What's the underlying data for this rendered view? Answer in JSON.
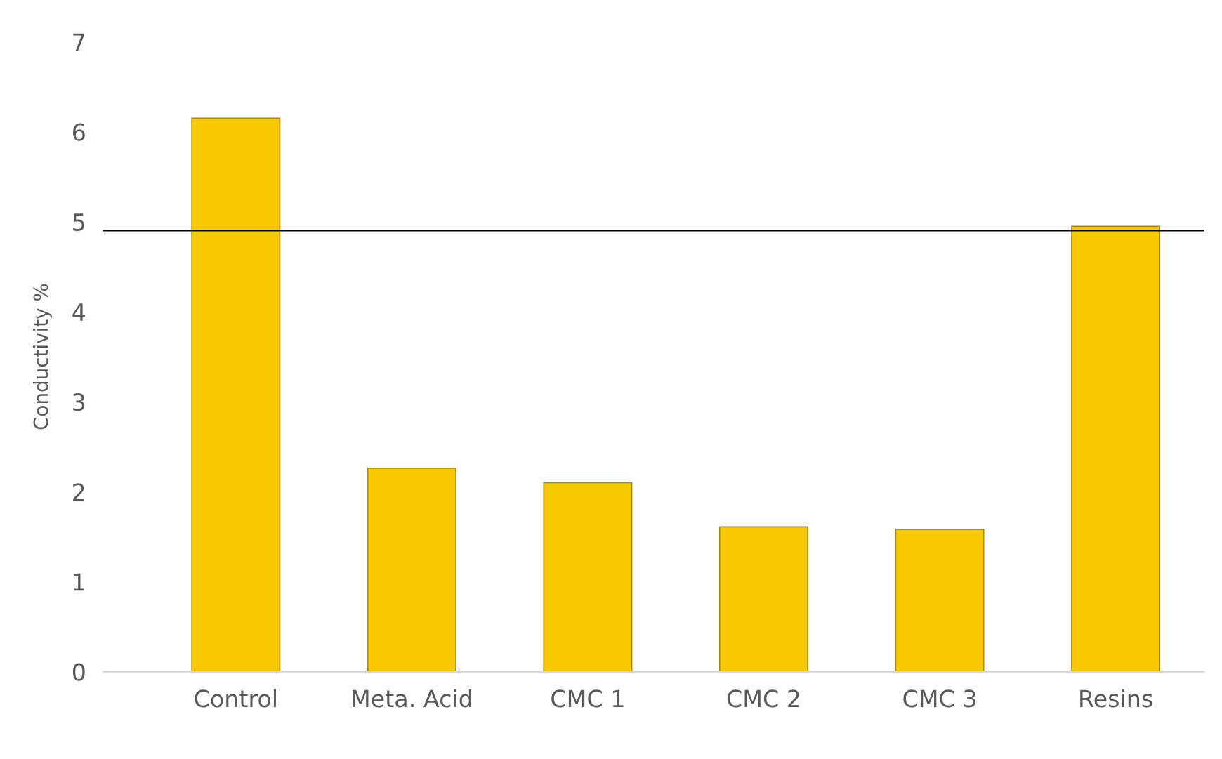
{
  "chart_data": {
    "type": "bar",
    "ylabel": "Conductivity %",
    "categories": [
      "Control",
      "Meta. Acid",
      "CMC 1",
      "CMC 2",
      "CMC 3",
      "Resins"
    ],
    "values": [
      6.15,
      2.26,
      2.1,
      1.61,
      1.58,
      4.95
    ],
    "color": "#f7c900",
    "ylim": [
      0,
      7
    ],
    "yticks": [
      0,
      1,
      2,
      3,
      4,
      5,
      6,
      7
    ],
    "grid": false,
    "ref_lines": [
      {
        "axis": "y",
        "value": 4.9,
        "color": "#000000"
      }
    ]
  }
}
